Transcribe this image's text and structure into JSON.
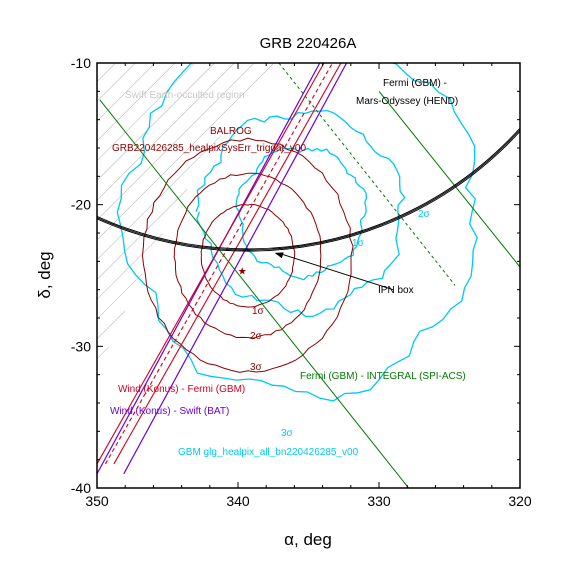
{
  "chart_data": {
    "type": "line",
    "title": "GRB 220426A",
    "xlabel": "α, deg",
    "ylabel": "δ, deg",
    "xlim": [
      350,
      320
    ],
    "ylim": [
      -40,
      -10
    ],
    "x_ticks": [
      350,
      340,
      330,
      320
    ],
    "y_ticks": [
      -10,
      -20,
      -30,
      -40
    ],
    "x_tick_labels": [
      "350",
      "340",
      "330",
      "320"
    ],
    "y_tick_labels": [
      "-10",
      "-20",
      "-30",
      "-40"
    ],
    "colors": {
      "balrog": "#8b0000",
      "gbm": "#00c8f0",
      "konus_fermi": "#d00020",
      "konus_swift": "#6a00d8",
      "fermi_integral": "#007a00",
      "fermi_mars": "#000000",
      "hatch": "#b0b0b0",
      "grb_marker": "#8b0000"
    },
    "annotations": {
      "swift_occulted": "Swift Earth-occulted region",
      "balrog_title": "BALROG",
      "balrog_file": "GRB220426285_healpixSysErr_trigdat_v00",
      "fermi_mars_line1": "Fermi (GBM) -",
      "fermi_mars_line2": "Mars-Odyssey (HEND)",
      "ipn_box": "IPN box",
      "fermi_integral": "Fermi (GBM) - INTEGRAL (SPI-ACS)",
      "konus_fermi": "Wind (Konus) - Fermi (GBM)",
      "konus_swift": "Wind (Konus) - Swift (BAT)",
      "gbm_file": "GBM glg_healpix_all_bn220426285_v00",
      "sigma_1": "1σ",
      "sigma_2": "2σ",
      "sigma_3": "3σ",
      "gbm_sigma_1": "1σ",
      "gbm_sigma_2": "2σ",
      "gbm_sigma_3": "3σ"
    },
    "balrog_center": [
      339.3,
      -23.6
    ],
    "balrog_radii": [
      {
        "level": "1σ",
        "r_alpha": 3.3,
        "r_delta": 3.6
      },
      {
        "level": "2σ",
        "r_alpha": 5.2,
        "r_delta": 5.8
      },
      {
        "level": "3σ",
        "r_alpha": 7.4,
        "r_delta": 8.2
      }
    ],
    "grb_position": [
      339.7,
      -24.7
    ],
    "gbm_center": [
      335.5,
      -20.5
    ],
    "gbm_radii": [
      {
        "level": "1σ",
        "r_alpha": 4.5,
        "r_delta": 4.5
      },
      {
        "level": "2σ",
        "r_alpha": 7.2,
        "r_delta": 7.0
      },
      {
        "level": "3σ",
        "r_alpha": 12.5,
        "r_delta": 13.0
      }
    ],
    "mars_annulus": {
      "center": [
        339.3,
        3.0
      ],
      "radius_deg": 26.2
    },
    "konus_fermi_lines": [
      {
        "from": [
          350.0,
          -38.3
        ],
        "to": [
          333.9,
          -10.0
        ],
        "style": "solid"
      },
      {
        "from": [
          349.4,
          -38.3
        ],
        "to": [
          333.3,
          -10.0
        ],
        "style": "dash"
      },
      {
        "from": [
          348.8,
          -38.3
        ],
        "to": [
          332.7,
          -10.0
        ],
        "style": "solid"
      }
    ],
    "konus_swift_lines": [
      {
        "from": [
          350.0,
          -39.0
        ],
        "to": [
          334.2,
          -10.0
        ],
        "style": "solid"
      },
      {
        "from": [
          348.1,
          -39.0
        ],
        "to": [
          332.3,
          -10.0
        ],
        "style": "solid"
      }
    ],
    "fermi_integral_lines": [
      {
        "from": [
          349.8,
          -12.6
        ],
        "to": [
          327.9,
          -40.0
        ],
        "style": "solid"
      },
      {
        "from": [
          337.1,
          -10.0
        ],
        "to": [
          324.6,
          -25.7
        ],
        "style": "dash"
      },
      {
        "from": [
          330.0,
          -12.0
        ],
        "to": [
          320.0,
          -24.4
        ],
        "style": "solid"
      }
    ],
    "ipn_box_target": [
      337.4,
      -23.4
    ],
    "ipn_box_label_at": [
      329.0,
      -26.0
    ]
  }
}
